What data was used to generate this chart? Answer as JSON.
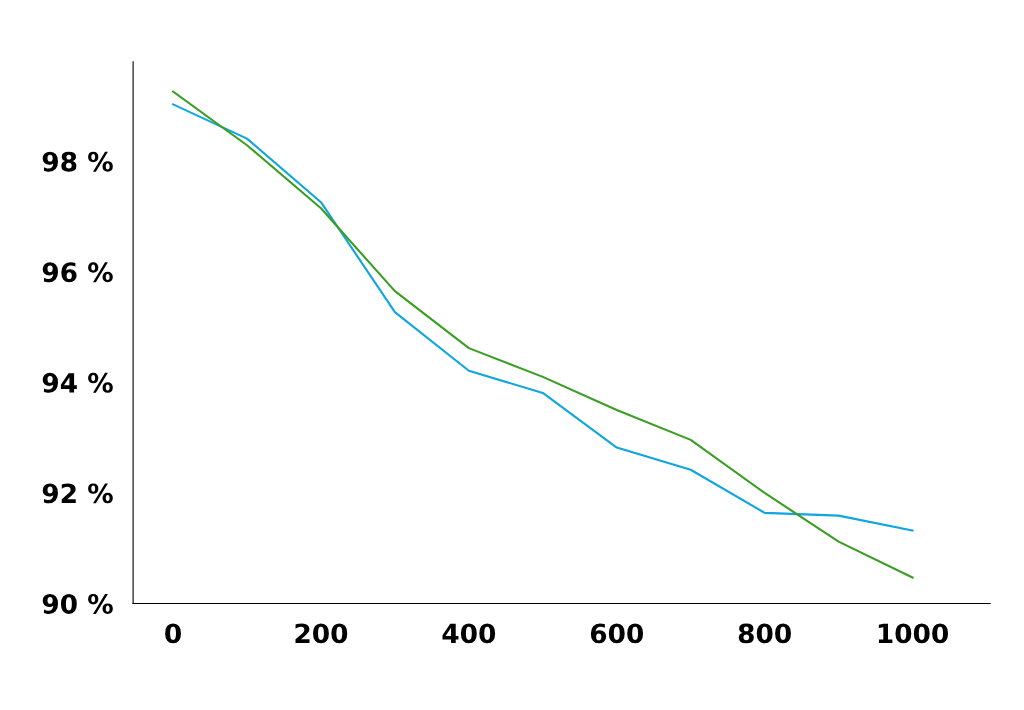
{
  "chart_data": {
    "type": "line",
    "x": [
      0,
      100,
      200,
      300,
      400,
      500,
      600,
      700,
      800,
      900,
      1000
    ],
    "series": [
      {
        "color": "#0ea5e0",
        "values": [
          99.03,
          98.41,
          97.26,
          95.27,
          94.21,
          93.81,
          92.82,
          92.42,
          91.64,
          91.59,
          91.32
        ]
      },
      {
        "color": "#3a9e22",
        "values": [
          99.26,
          98.29,
          97.15,
          95.65,
          94.62,
          94.1,
          93.5,
          92.96,
          92.0,
          91.12,
          90.47
        ]
      }
    ],
    "xlim": [
      -54,
      1105
    ],
    "ylim": [
      90,
      99.8
    ],
    "xticks": [
      0,
      200,
      400,
      600,
      800,
      1000
    ],
    "yticks": [
      {
        "value": 90,
        "label": "90 %"
      },
      {
        "value": 92,
        "label": "92 %"
      },
      {
        "value": 94,
        "label": "94 %"
      },
      {
        "value": 96,
        "label": "96 %"
      },
      {
        "value": 98,
        "label": "98 %"
      }
    ],
    "grid": false,
    "legend": false,
    "marker": "none",
    "line_style": "solid"
  }
}
